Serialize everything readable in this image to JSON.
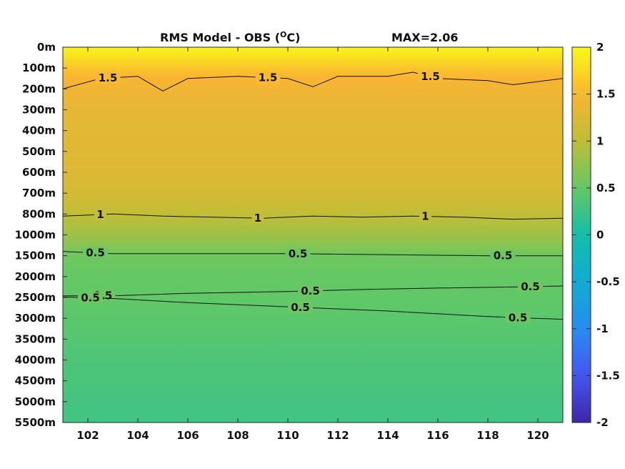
{
  "chart_data": {
    "type": "heatmap",
    "title": "RMS Model - OBS (",
    "title_unit_sup": "O",
    "title_unit_suffix": "C)",
    "max_label": "MAX=2.06",
    "xlim": [
      101,
      121
    ],
    "x_ticks": [
      102,
      104,
      106,
      108,
      110,
      112,
      114,
      116,
      118,
      120
    ],
    "x_tick_labels": [
      "102",
      "104",
      "106",
      "108",
      "110",
      "112",
      "114",
      "116",
      "118",
      "120"
    ],
    "y_tick_labels": [
      "0m",
      "100m",
      "200m",
      "300m",
      "400m",
      "500m",
      "600m",
      "700m",
      "800m",
      "1000m",
      "1500m",
      "2000m",
      "2500m",
      "3000m",
      "3500m",
      "4000m",
      "4500m",
      "5000m",
      "5500m"
    ],
    "colorbar": {
      "range": [
        -2,
        2
      ],
      "ticks": [
        2,
        1.5,
        1,
        0.5,
        0,
        -0.5,
        -1,
        -1.5,
        -2
      ],
      "tick_labels": [
        "2",
        "1.5",
        "1",
        "0.5",
        "0",
        "-0.5",
        "-1",
        "-1.5",
        "-2"
      ],
      "colormap": "parula"
    },
    "field_profile": [
      {
        "level": 0,
        "value": 1.95
      },
      {
        "level": 0.5,
        "value": 1.8
      },
      {
        "level": 1,
        "value": 1.62
      },
      {
        "level": 1.5,
        "value": 1.5
      },
      {
        "level": 2,
        "value": 1.42
      },
      {
        "level": 3,
        "value": 1.33
      },
      {
        "level": 4,
        "value": 1.3
      },
      {
        "level": 5,
        "value": 1.28
      },
      {
        "level": 6,
        "value": 1.25
      },
      {
        "level": 7,
        "value": 1.18
      },
      {
        "level": 8,
        "value": 1.03
      },
      {
        "level": 9,
        "value": 0.82
      },
      {
        "level": 10,
        "value": 0.56
      },
      {
        "level": 11,
        "value": 0.5
      },
      {
        "level": 12,
        "value": 0.48
      },
      {
        "level": 13,
        "value": 0.44
      },
      {
        "level": 14,
        "value": 0.4
      },
      {
        "level": 15,
        "value": 0.36
      },
      {
        "level": 16,
        "value": 0.33
      },
      {
        "level": 17,
        "value": 0.3
      },
      {
        "level": 18,
        "value": 0.28
      }
    ],
    "contours": [
      {
        "level": "1.5",
        "points": [
          [
            101,
            2.0
          ],
          [
            102.5,
            1.5
          ],
          [
            104,
            1.4
          ],
          [
            105,
            2.1
          ],
          [
            106,
            1.5
          ],
          [
            108,
            1.4
          ],
          [
            110,
            1.5
          ],
          [
            111,
            1.9
          ],
          [
            112,
            1.4
          ],
          [
            114,
            1.4
          ],
          [
            115,
            1.2
          ],
          [
            116,
            1.5
          ],
          [
            118,
            1.6
          ],
          [
            119,
            1.8
          ],
          [
            121,
            1.5
          ]
        ],
        "labels": [
          102.8,
          109.2,
          115.7
        ]
      },
      {
        "level": "1",
        "points": [
          [
            101,
            8.1
          ],
          [
            103,
            8.0
          ],
          [
            105,
            8.1
          ],
          [
            107,
            8.15
          ],
          [
            109,
            8.2
          ],
          [
            111,
            8.1
          ],
          [
            113,
            8.15
          ],
          [
            115,
            8.1
          ],
          [
            117,
            8.15
          ],
          [
            119,
            8.25
          ],
          [
            121,
            8.2
          ]
        ],
        "labels": [
          102.5,
          108.8,
          115.5
        ]
      },
      {
        "level": "0.5",
        "points": [
          [
            101,
            9.8
          ],
          [
            103,
            9.9
          ],
          [
            106,
            9.9
          ],
          [
            110,
            9.9
          ],
          [
            114,
            9.95
          ],
          [
            118,
            10.0
          ],
          [
            121,
            10.0
          ]
        ],
        "labels": [
          102.3,
          110.4,
          118.6
        ]
      },
      {
        "level": "0.5",
        "points": [
          [
            101,
            11.92
          ],
          [
            103,
            11.92
          ],
          [
            106,
            11.8
          ],
          [
            110,
            11.72
          ],
          [
            113,
            11.62
          ],
          [
            116,
            11.55
          ],
          [
            119,
            11.5
          ],
          [
            121,
            11.45
          ]
        ],
        "labels": [
          102.6,
          110.9,
          119.7
        ]
      },
      {
        "level": "0.5",
        "points": [
          [
            101,
            11.98
          ],
          [
            103,
            12.05
          ],
          [
            106,
            12.25
          ],
          [
            110,
            12.45
          ],
          [
            114,
            12.65
          ],
          [
            118,
            12.92
          ],
          [
            121,
            13.05
          ]
        ],
        "labels": [
          102.1,
          110.5,
          119.2
        ]
      }
    ]
  }
}
